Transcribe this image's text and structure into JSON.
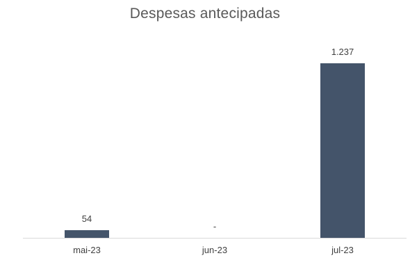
{
  "chart_data": {
    "type": "bar",
    "title": "Despesas antecipadas",
    "categories": [
      "mai-23",
      "jun-23",
      "jul-23"
    ],
    "values": [
      54,
      0,
      1237
    ],
    "data_labels": [
      "54",
      "-",
      "1.237"
    ],
    "xlabel": "",
    "ylabel": "",
    "ylim": [
      0,
      1237
    ],
    "grid": false,
    "legend": "none",
    "bar_color": "#44546a",
    "axis_color": "#d9d9d9"
  }
}
